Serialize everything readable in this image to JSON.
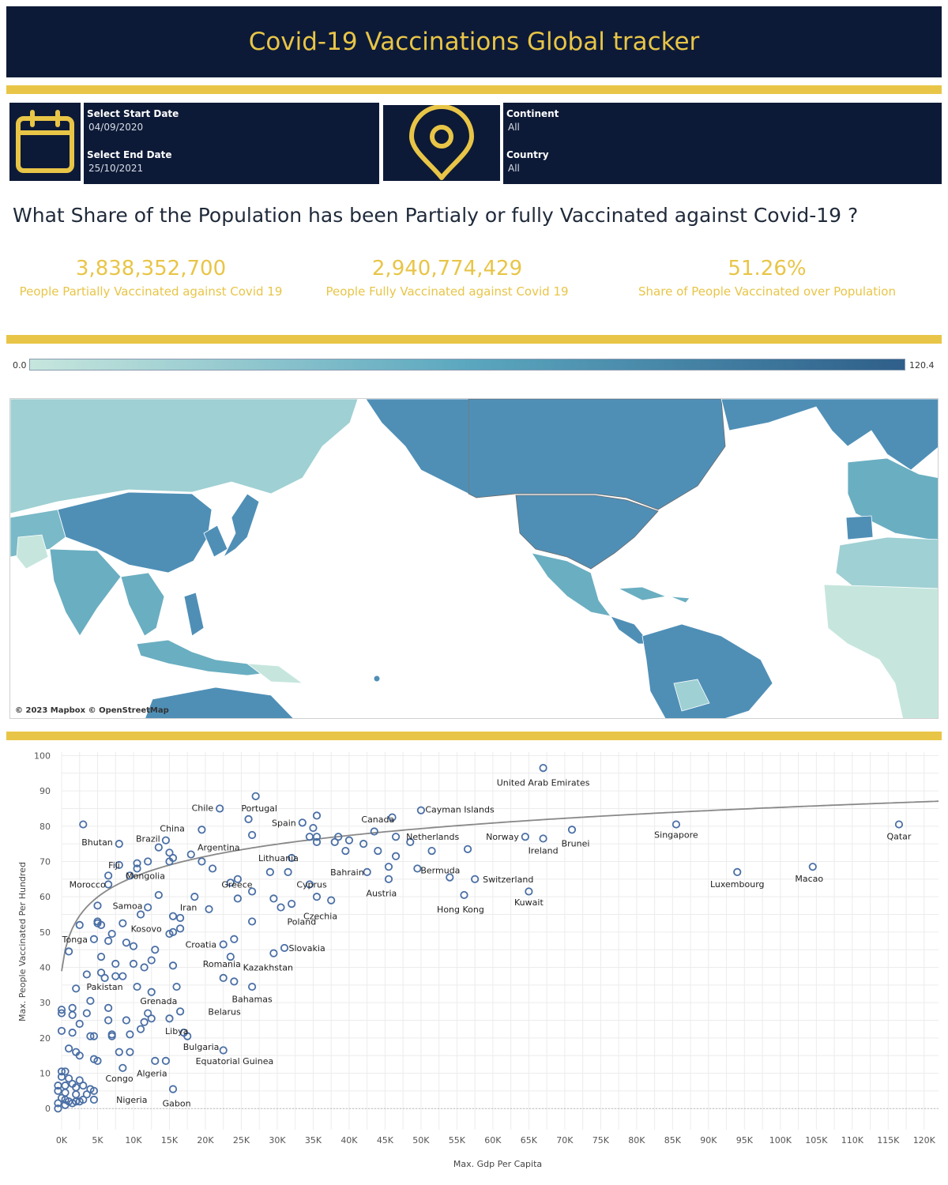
{
  "header": {
    "title": "Covid-19 Vaccinations Global tracker"
  },
  "filters": {
    "start_label": "Select Start Date",
    "start_value": "04/09/2020",
    "end_label": "Select End Date",
    "end_value": "25/10/2021",
    "continent_label": "Continent",
    "continent_value": "All",
    "country_label": "Country",
    "country_value": "All",
    "calendar_icon": "calendar-icon",
    "location_icon": "location-pin-icon"
  },
  "question": "What Share of the Population has been Partialy or fully Vaccinated against Covid-19 ?",
  "kpis": [
    {
      "value": "3,838,352,700",
      "label": "People Partially Vaccinated against Covid 19"
    },
    {
      "value": "2,940,774,429",
      "label": "People Fully Vaccinated against Covid 19"
    },
    {
      "value": "51.26%",
      "label": "Share of People Vaccinated over Population"
    }
  ],
  "map_legend": {
    "min": "0.0",
    "max": "120.4",
    "color_low": "#c6e6dd",
    "color_high": "#2f5f8a"
  },
  "map_credit": "© 2023 Mapbox © OpenStreetMap",
  "colors": {
    "navy": "#0d1a37",
    "accent": "#e8c547",
    "point": "#4a6fa5",
    "trend": "#888888"
  },
  "chart_data": {
    "type": "scatter",
    "xlabel": "Max. Gdp Per Capita",
    "ylabel": "Max. People Vaccinated Per Hundred",
    "xlim": [
      0,
      122000
    ],
    "ylim": [
      -6,
      101
    ],
    "x_ticks": [
      "0K",
      "5K",
      "10K",
      "15K",
      "20K",
      "25K",
      "30K",
      "35K",
      "40K",
      "45K",
      "50K",
      "55K",
      "60K",
      "65K",
      "70K",
      "75K",
      "80K",
      "85K",
      "90K",
      "95K",
      "100K",
      "105K",
      "110K",
      "115K",
      "120K"
    ],
    "y_ticks": [
      "0",
      "10",
      "20",
      "30",
      "40",
      "50",
      "60",
      "70",
      "80",
      "90",
      "100"
    ],
    "trend_line": "logarithmic",
    "labeled_points": [
      {
        "name": "United Arab Emirates",
        "x": 67000,
        "y": 96
      },
      {
        "name": "Chile",
        "x": 22000,
        "y": 85
      },
      {
        "name": "Portugal",
        "x": 27500,
        "y": 88.5
      },
      {
        "name": "Cayman Islands",
        "x": 49500,
        "y": 84.5
      },
      {
        "name": "Canada",
        "x": 44000,
        "y": 82
      },
      {
        "name": "Spain",
        "x": 33500,
        "y": 81
      },
      {
        "name": "China",
        "x": 16500,
        "y": 79
      },
      {
        "name": "Brazil",
        "x": 14000,
        "y": 76
      },
      {
        "name": "Netherlands",
        "x": 47500,
        "y": 77
      },
      {
        "name": "Norway",
        "x": 64500,
        "y": 77
      },
      {
        "name": "Singapore",
        "x": 85500,
        "y": 81
      },
      {
        "name": "Qatar",
        "x": 116500,
        "y": 80.5
      },
      {
        "name": "Bhutan",
        "x": 8000,
        "y": 75.5
      },
      {
        "name": "Argentina",
        "x": 20000,
        "y": 74
      },
      {
        "name": "Ireland",
        "x": 67000,
        "y": 76.5
      },
      {
        "name": "Brunei",
        "x": 71500,
        "y": 78.5
      },
      {
        "name": "Lithuania",
        "x": 30000,
        "y": 71
      },
      {
        "name": "Fiji",
        "x": 9000,
        "y": 69
      },
      {
        "name": "Bermuda",
        "x": 49500,
        "y": 67.5
      },
      {
        "name": "Bahrain",
        "x": 42500,
        "y": 67
      },
      {
        "name": "Mongolia",
        "x": 12000,
        "y": 66
      },
      {
        "name": "Morocco",
        "x": 7000,
        "y": 63.5
      },
      {
        "name": "Greece",
        "x": 24000,
        "y": 63.5
      },
      {
        "name": "Cyprus",
        "x": 34000,
        "y": 63.5
      },
      {
        "name": "Switzerland",
        "x": 57500,
        "y": 65
      },
      {
        "name": "Luxembourg",
        "x": 94000,
        "y": 67
      },
      {
        "name": "Macao",
        "x": 104000,
        "y": 68.5
      },
      {
        "name": "Austria",
        "x": 44500,
        "y": 61
      },
      {
        "name": "Samoa",
        "x": 6000,
        "y": 57.5
      },
      {
        "name": "Iran",
        "x": 19500,
        "y": 57
      },
      {
        "name": "Kuwait",
        "x": 65000,
        "y": 58.5
      },
      {
        "name": "Hong Kong",
        "x": 55500,
        "y": 56.5
      },
      {
        "name": "Poland",
        "x": 30500,
        "y": 53
      },
      {
        "name": "Czechia",
        "x": 36000,
        "y": 54.5
      },
      {
        "name": "Tonga",
        "x": 4500,
        "y": 48
      },
      {
        "name": "Kosovo",
        "x": 12000,
        "y": 51
      },
      {
        "name": "Croatia",
        "x": 22000,
        "y": 46.5
      },
      {
        "name": "Slovakia",
        "x": 30500,
        "y": 45.5
      },
      {
        "name": "Romania",
        "x": 22500,
        "y": 41
      },
      {
        "name": "Kazakhstan",
        "x": 27000,
        "y": 40
      },
      {
        "name": "Pakistan",
        "x": 6000,
        "y": 34.5
      },
      {
        "name": "Bahamas",
        "x": 26500,
        "y": 31
      },
      {
        "name": "Grenada",
        "x": 13500,
        "y": 30.5
      },
      {
        "name": "Belarus",
        "x": 19500,
        "y": 27.5
      },
      {
        "name": "Libya",
        "x": 15500,
        "y": 22
      },
      {
        "name": "Bulgaria",
        "x": 18000,
        "y": 17.5
      },
      {
        "name": "Equatorial Guinea",
        "x": 21500,
        "y": 13.5
      },
      {
        "name": "Algeria",
        "x": 13000,
        "y": 10
      },
      {
        "name": "Congo",
        "x": 5000,
        "y": 8.5
      },
      {
        "name": "Nigeria",
        "x": 6500,
        "y": 2.5
      },
      {
        "name": "Gabon",
        "x": 16000,
        "y": 1.5
      }
    ],
    "points": [
      {
        "x": 67000,
        "y": 96.5
      },
      {
        "x": 27000,
        "y": 88.5
      },
      {
        "x": 22000,
        "y": 85
      },
      {
        "x": 50000,
        "y": 84.5
      },
      {
        "x": 46000,
        "y": 82.5
      },
      {
        "x": 35500,
        "y": 83
      },
      {
        "x": 26000,
        "y": 82
      },
      {
        "x": 33500,
        "y": 81
      },
      {
        "x": 3000,
        "y": 80.5
      },
      {
        "x": 85500,
        "y": 80.5
      },
      {
        "x": 116500,
        "y": 80.5
      },
      {
        "x": 19500,
        "y": 79
      },
      {
        "x": 35000,
        "y": 79.5
      },
      {
        "x": 71000,
        "y": 79
      },
      {
        "x": 43500,
        "y": 78.5
      },
      {
        "x": 46500,
        "y": 77
      },
      {
        "x": 26500,
        "y": 77.5
      },
      {
        "x": 34500,
        "y": 77
      },
      {
        "x": 35500,
        "y": 77
      },
      {
        "x": 38500,
        "y": 77
      },
      {
        "x": 40000,
        "y": 76
      },
      {
        "x": 64500,
        "y": 77
      },
      {
        "x": 67000,
        "y": 76.5
      },
      {
        "x": 14500,
        "y": 76
      },
      {
        "x": 8000,
        "y": 75
      },
      {
        "x": 35500,
        "y": 75.5
      },
      {
        "x": 38000,
        "y": 75.5
      },
      {
        "x": 42000,
        "y": 75
      },
      {
        "x": 48500,
        "y": 75.5
      },
      {
        "x": 13500,
        "y": 74
      },
      {
        "x": 15000,
        "y": 72.5
      },
      {
        "x": 44000,
        "y": 73
      },
      {
        "x": 39500,
        "y": 73
      },
      {
        "x": 56500,
        "y": 73.5
      },
      {
        "x": 51500,
        "y": 73
      },
      {
        "x": 18000,
        "y": 72
      },
      {
        "x": 15500,
        "y": 71
      },
      {
        "x": 46500,
        "y": 71.5
      },
      {
        "x": 32000,
        "y": 71
      },
      {
        "x": 8000,
        "y": 69
      },
      {
        "x": 10500,
        "y": 69.5
      },
      {
        "x": 12000,
        "y": 70
      },
      {
        "x": 15000,
        "y": 70
      },
      {
        "x": 19500,
        "y": 70
      },
      {
        "x": 10500,
        "y": 68
      },
      {
        "x": 21000,
        "y": 68
      },
      {
        "x": 29000,
        "y": 67
      },
      {
        "x": 31500,
        "y": 67
      },
      {
        "x": 42500,
        "y": 67
      },
      {
        "x": 45500,
        "y": 68.5
      },
      {
        "x": 49500,
        "y": 68
      },
      {
        "x": 6500,
        "y": 66
      },
      {
        "x": 9500,
        "y": 66
      },
      {
        "x": 24500,
        "y": 65
      },
      {
        "x": 54000,
        "y": 65.5
      },
      {
        "x": 57500,
        "y": 65
      },
      {
        "x": 45500,
        "y": 65
      },
      {
        "x": 94000,
        "y": 67
      },
      {
        "x": 104500,
        "y": 68.5
      },
      {
        "x": 6500,
        "y": 63.5
      },
      {
        "x": 23500,
        "y": 64
      },
      {
        "x": 34500,
        "y": 63.5
      },
      {
        "x": 65000,
        "y": 61.5
      },
      {
        "x": 26500,
        "y": 61.5
      },
      {
        "x": 13500,
        "y": 60.5
      },
      {
        "x": 18500,
        "y": 60
      },
      {
        "x": 24500,
        "y": 59.5
      },
      {
        "x": 29500,
        "y": 59.5
      },
      {
        "x": 35500,
        "y": 60
      },
      {
        "x": 37500,
        "y": 59
      },
      {
        "x": 56000,
        "y": 60.5
      },
      {
        "x": 5000,
        "y": 57.5
      },
      {
        "x": 12000,
        "y": 57
      },
      {
        "x": 20500,
        "y": 56.5
      },
      {
        "x": 32000,
        "y": 58
      },
      {
        "x": 30500,
        "y": 57
      },
      {
        "x": 11000,
        "y": 55
      },
      {
        "x": 15500,
        "y": 54.5
      },
      {
        "x": 16500,
        "y": 54
      },
      {
        "x": 5000,
        "y": 53
      },
      {
        "x": 5000,
        "y": 52.5
      },
      {
        "x": 5500,
        "y": 52
      },
      {
        "x": 2500,
        "y": 52
      },
      {
        "x": 26500,
        "y": 53
      },
      {
        "x": 8500,
        "y": 52.5
      },
      {
        "x": 9000,
        "y": 47
      },
      {
        "x": 16500,
        "y": 51
      },
      {
        "x": 15000,
        "y": 49.5
      },
      {
        "x": 15500,
        "y": 50
      },
      {
        "x": 7000,
        "y": 49.5
      },
      {
        "x": 6500,
        "y": 47.5
      },
      {
        "x": 4500,
        "y": 48
      },
      {
        "x": 10000,
        "y": 46
      },
      {
        "x": 22500,
        "y": 46.5
      },
      {
        "x": 24000,
        "y": 48
      },
      {
        "x": 29500,
        "y": 44
      },
      {
        "x": 31000,
        "y": 45.5
      },
      {
        "x": 1000,
        "y": 44.5
      },
      {
        "x": 13000,
        "y": 45
      },
      {
        "x": 23500,
        "y": 43
      },
      {
        "x": 5500,
        "y": 43
      },
      {
        "x": 7500,
        "y": 41
      },
      {
        "x": 10000,
        "y": 41
      },
      {
        "x": 12500,
        "y": 42
      },
      {
        "x": 15500,
        "y": 40.5
      },
      {
        "x": 11500,
        "y": 40
      },
      {
        "x": 3500,
        "y": 38
      },
      {
        "x": 5500,
        "y": 38.5
      },
      {
        "x": 6000,
        "y": 37
      },
      {
        "x": 7500,
        "y": 37.5
      },
      {
        "x": 8500,
        "y": 37.5
      },
      {
        "x": 22500,
        "y": 37
      },
      {
        "x": 24000,
        "y": 36
      },
      {
        "x": 2000,
        "y": 34
      },
      {
        "x": 10500,
        "y": 34.5
      },
      {
        "x": 12500,
        "y": 33
      },
      {
        "x": 16000,
        "y": 34.5
      },
      {
        "x": 26500,
        "y": 34.5
      },
      {
        "x": 4000,
        "y": 30.5
      },
      {
        "x": 0,
        "y": 28
      },
      {
        "x": 1500,
        "y": 28.5
      },
      {
        "x": 0,
        "y": 27
      },
      {
        "x": 1500,
        "y": 26.5
      },
      {
        "x": 3500,
        "y": 27
      },
      {
        "x": 6500,
        "y": 28.5
      },
      {
        "x": 12000,
        "y": 27
      },
      {
        "x": 16500,
        "y": 27.5
      },
      {
        "x": 6500,
        "y": 25
      },
      {
        "x": 9000,
        "y": 25
      },
      {
        "x": 12500,
        "y": 25.5
      },
      {
        "x": 11500,
        "y": 24.5
      },
      {
        "x": 15000,
        "y": 25.5
      },
      {
        "x": 2500,
        "y": 24
      },
      {
        "x": 11000,
        "y": 22.5
      },
      {
        "x": 0,
        "y": 22
      },
      {
        "x": 1500,
        "y": 21.5
      },
      {
        "x": 4000,
        "y": 20.5
      },
      {
        "x": 4500,
        "y": 20.5
      },
      {
        "x": 7000,
        "y": 20.5
      },
      {
        "x": 7000,
        "y": 21
      },
      {
        "x": 9500,
        "y": 21
      },
      {
        "x": 17000,
        "y": 21.5
      },
      {
        "x": 17500,
        "y": 20.5
      },
      {
        "x": 1000,
        "y": 17
      },
      {
        "x": 2000,
        "y": 16
      },
      {
        "x": 2500,
        "y": 15
      },
      {
        "x": 8000,
        "y": 16
      },
      {
        "x": 9500,
        "y": 16
      },
      {
        "x": 22500,
        "y": 16.5
      },
      {
        "x": 4500,
        "y": 14
      },
      {
        "x": 5000,
        "y": 13.5
      },
      {
        "x": 13000,
        "y": 13.5
      },
      {
        "x": 14500,
        "y": 13.5
      },
      {
        "x": 8500,
        "y": 11.5
      },
      {
        "x": 0,
        "y": 10.5
      },
      {
        "x": 500,
        "y": 10.5
      },
      {
        "x": 0,
        "y": 9
      },
      {
        "x": 1000,
        "y": 8.5
      },
      {
        "x": 2500,
        "y": 8
      },
      {
        "x": -500,
        "y": 6.5
      },
      {
        "x": 500,
        "y": 6.5
      },
      {
        "x": 1500,
        "y": 7
      },
      {
        "x": 2000,
        "y": 6
      },
      {
        "x": 3000,
        "y": 6.5
      },
      {
        "x": 4000,
        "y": 5.5
      },
      {
        "x": -500,
        "y": 5
      },
      {
        "x": 500,
        "y": 4.5
      },
      {
        "x": 2000,
        "y": 4
      },
      {
        "x": 3500,
        "y": 4
      },
      {
        "x": 4500,
        "y": 5
      },
      {
        "x": 15500,
        "y": 5.5
      },
      {
        "x": 0,
        "y": 3
      },
      {
        "x": 500,
        "y": 2.5
      },
      {
        "x": 1000,
        "y": 2
      },
      {
        "x": 2000,
        "y": 2
      },
      {
        "x": 2500,
        "y": 2
      },
      {
        "x": 3000,
        "y": 2.5
      },
      {
        "x": 4500,
        "y": 2.5
      },
      {
        "x": -500,
        "y": 1.5
      },
      {
        "x": 500,
        "y": 1
      },
      {
        "x": 1500,
        "y": 1.5
      },
      {
        "x": -500,
        "y": 0
      }
    ]
  }
}
